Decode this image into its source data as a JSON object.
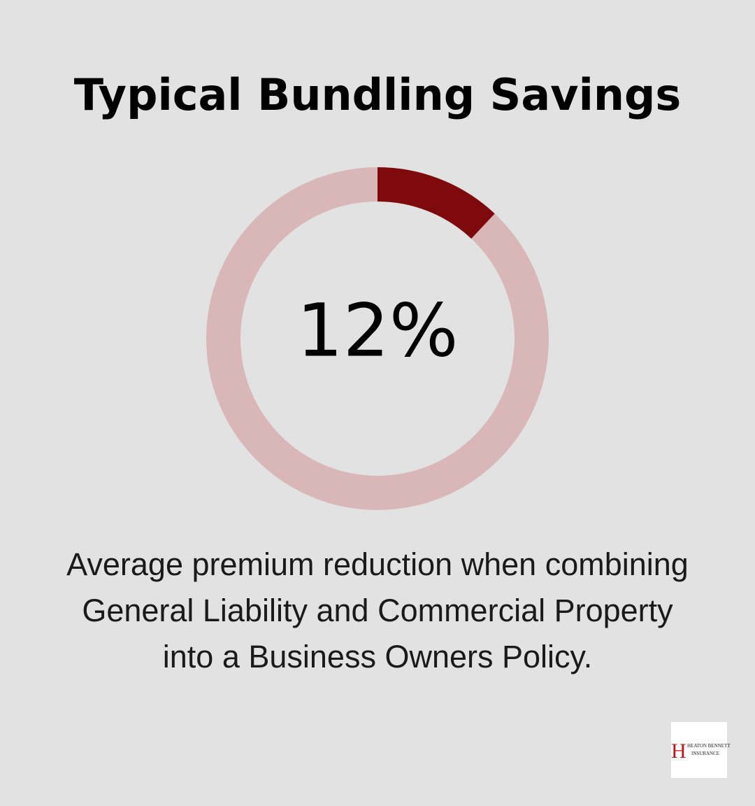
{
  "chart_data": {
    "type": "donut",
    "title": "Typical Bundling Savings",
    "values": [
      12
    ],
    "value_labels": [
      "12%"
    ],
    "color": "#7f0a0e",
    "track_color": "#d9b7b9",
    "caption_lines": [
      "Average premium reduction when combining",
      "General Liability and Commercial Property",
      "into a Business Owners Policy."
    ]
  },
  "logo": {
    "initial": "H",
    "line1": "HEATON BENNETT",
    "line2": "INSURANCE"
  }
}
